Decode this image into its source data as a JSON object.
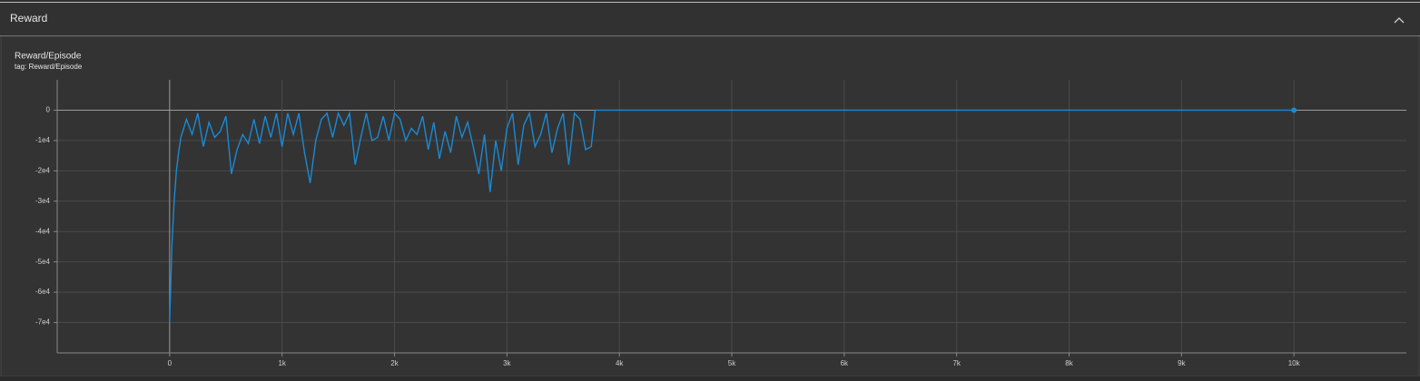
{
  "section": {
    "title": "Reward"
  },
  "chart_data": {
    "type": "line",
    "title": "Reward/Episode",
    "subtitle": "tag: Reward/Episode",
    "color": "#1a8ad4",
    "grid": true,
    "xlim": [
      -1000,
      11000
    ],
    "xticks": [
      0,
      {
        "value": 1000,
        "label": "1k"
      },
      {
        "value": 2000,
        "label": "2k"
      },
      {
        "value": 3000,
        "label": "3k"
      },
      {
        "value": 4000,
        "label": "4k"
      },
      {
        "value": 5000,
        "label": "5k"
      },
      {
        "value": 6000,
        "label": "6k"
      },
      {
        "value": 7000,
        "label": "7k"
      },
      {
        "value": 8000,
        "label": "8k"
      },
      {
        "value": 9000,
        "label": "9k"
      },
      {
        "value": 10000,
        "label": "10k"
      }
    ],
    "ylim": [
      -80000,
      10000
    ],
    "yticks": [
      0,
      {
        "value": -10000,
        "label": "-1e4"
      },
      {
        "value": -20000,
        "label": "-2e4"
      },
      {
        "value": -30000,
        "label": "-3e4"
      },
      {
        "value": -40000,
        "label": "-4e4"
      },
      {
        "value": -50000,
        "label": "-5e4"
      },
      {
        "value": -60000,
        "label": "-6e4"
      },
      {
        "value": -70000,
        "label": "-7e4"
      }
    ],
    "x": [
      0,
      20,
      40,
      60,
      80,
      100,
      150,
      200,
      250,
      300,
      350,
      400,
      450,
      500,
      550,
      600,
      650,
      700,
      750,
      800,
      850,
      900,
      950,
      1000,
      1050,
      1100,
      1150,
      1200,
      1250,
      1300,
      1350,
      1400,
      1450,
      1500,
      1550,
      1600,
      1650,
      1700,
      1750,
      1800,
      1850,
      1900,
      1950,
      2000,
      2050,
      2100,
      2150,
      2200,
      2250,
      2300,
      2350,
      2400,
      2450,
      2500,
      2550,
      2600,
      2650,
      2700,
      2750,
      2800,
      2850,
      2900,
      2950,
      3000,
      3050,
      3100,
      3150,
      3200,
      3250,
      3300,
      3350,
      3400,
      3450,
      3500,
      3550,
      3600,
      3650,
      3700,
      3750,
      3785,
      10000
    ],
    "values": [
      -70000,
      -45000,
      -30000,
      -20000,
      -14000,
      -9000,
      -3000,
      -8000,
      -1000,
      -12000,
      -4000,
      -9000,
      -7000,
      -2000,
      -21000,
      -13000,
      -8000,
      -11000,
      -3000,
      -11000,
      -2000,
      -9000,
      -1000,
      -12000,
      -1000,
      -8000,
      -1000,
      -14000,
      -24000,
      -10000,
      -3000,
      -1000,
      -9000,
      -1000,
      -5000,
      -1000,
      -18000,
      -9000,
      -1000,
      -10000,
      -9000,
      -2000,
      -10000,
      -1000,
      -3000,
      -10000,
      -6000,
      -8000,
      -2000,
      -13000,
      -4000,
      -16000,
      -7000,
      -14000,
      -2000,
      -9000,
      -4000,
      -12000,
      -21000,
      -8000,
      -27000,
      -10000,
      -20000,
      -6000,
      -1000,
      -18000,
      -5000,
      -1000,
      -12000,
      -8000,
      -1000,
      -14000,
      -6000,
      -1000,
      -18000,
      -1000,
      -3000,
      -13000,
      -12000,
      0,
      0
    ]
  }
}
